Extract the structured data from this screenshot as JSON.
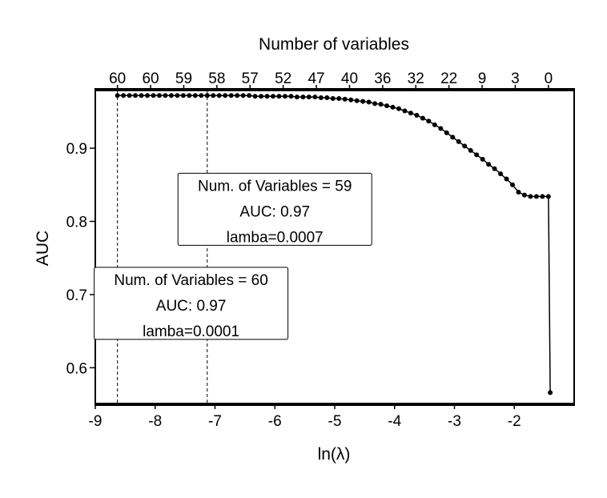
{
  "chart_data": {
    "type": "line",
    "title": "Number of variables",
    "xlabel": "ln(λ)",
    "ylabel": "AUC",
    "xlim": [
      -9,
      -1
    ],
    "ylim": [
      0.55,
      0.98
    ],
    "x_ticks": [
      "-9",
      "-8",
      "-7",
      "-6",
      "-5",
      "-4",
      "-3",
      "-2"
    ],
    "y_ticks": [
      "0.6",
      "0.7",
      "0.8",
      "0.9"
    ],
    "top_ticks": [
      "60",
      "60",
      "59",
      "58",
      "57",
      "52",
      "47",
      "40",
      "36",
      "32",
      "22",
      "9",
      "3",
      "0"
    ],
    "grid": false,
    "series": [
      {
        "x": [
          -8.63,
          -8.53,
          -8.43,
          -8.33,
          -8.23,
          -8.13,
          -8.03,
          -7.93,
          -7.83,
          -7.73,
          -7.63,
          -7.53,
          -7.43,
          -7.33,
          -7.23,
          -7.13,
          -7.03,
          -6.93,
          -6.83,
          -6.73,
          -6.63,
          -6.53,
          -6.43,
          -6.33,
          -6.23,
          -6.13,
          -6.03,
          -5.93,
          -5.83,
          -5.73,
          -5.63,
          -5.53,
          -5.43,
          -5.33,
          -5.23,
          -5.13,
          -5.03,
          -4.93,
          -4.83,
          -4.73,
          -4.63,
          -4.53,
          -4.43,
          -4.33,
          -4.23,
          -4.13,
          -4.03,
          -3.93,
          -3.83,
          -3.73,
          -3.63,
          -3.53,
          -3.43,
          -3.33,
          -3.23,
          -3.13,
          -3.03,
          -2.93,
          -2.83,
          -2.73,
          -2.63,
          -2.53,
          -2.43,
          -2.33,
          -2.23,
          -2.13,
          -2.03,
          -1.93,
          -1.83,
          -1.73,
          -1.63,
          -1.53,
          -1.43,
          -1.4
        ],
        "y": [
          0.972,
          0.972,
          0.972,
          0.972,
          0.972,
          0.972,
          0.972,
          0.972,
          0.972,
          0.972,
          0.972,
          0.972,
          0.972,
          0.972,
          0.972,
          0.972,
          0.972,
          0.972,
          0.972,
          0.972,
          0.972,
          0.972,
          0.972,
          0.971,
          0.971,
          0.971,
          0.971,
          0.971,
          0.971,
          0.971,
          0.97,
          0.97,
          0.97,
          0.97,
          0.969,
          0.969,
          0.968,
          0.968,
          0.967,
          0.966,
          0.965,
          0.964,
          0.963,
          0.961,
          0.96,
          0.958,
          0.956,
          0.954,
          0.951,
          0.948,
          0.945,
          0.941,
          0.937,
          0.932,
          0.927,
          0.921,
          0.915,
          0.909,
          0.903,
          0.897,
          0.891,
          0.885,
          0.878,
          0.872,
          0.865,
          0.858,
          0.85,
          0.84,
          0.836,
          0.834,
          0.834,
          0.834,
          0.834,
          0.566
        ]
      }
    ],
    "vlines": [
      -8.63,
      -7.13
    ],
    "annotations": [
      {
        "anchor_x": -6.0,
        "anchor_y": 0.8165,
        "lines": [
          "Num. of Variables = 59",
          "AUC: 0.97",
          "lamba=0.0007"
        ]
      },
      {
        "anchor_x": -7.4,
        "anchor_y": 0.688,
        "lines": [
          "Num. of Variables = 60",
          "AUC: 0.97",
          "lamba=0.0001"
        ]
      }
    ]
  }
}
